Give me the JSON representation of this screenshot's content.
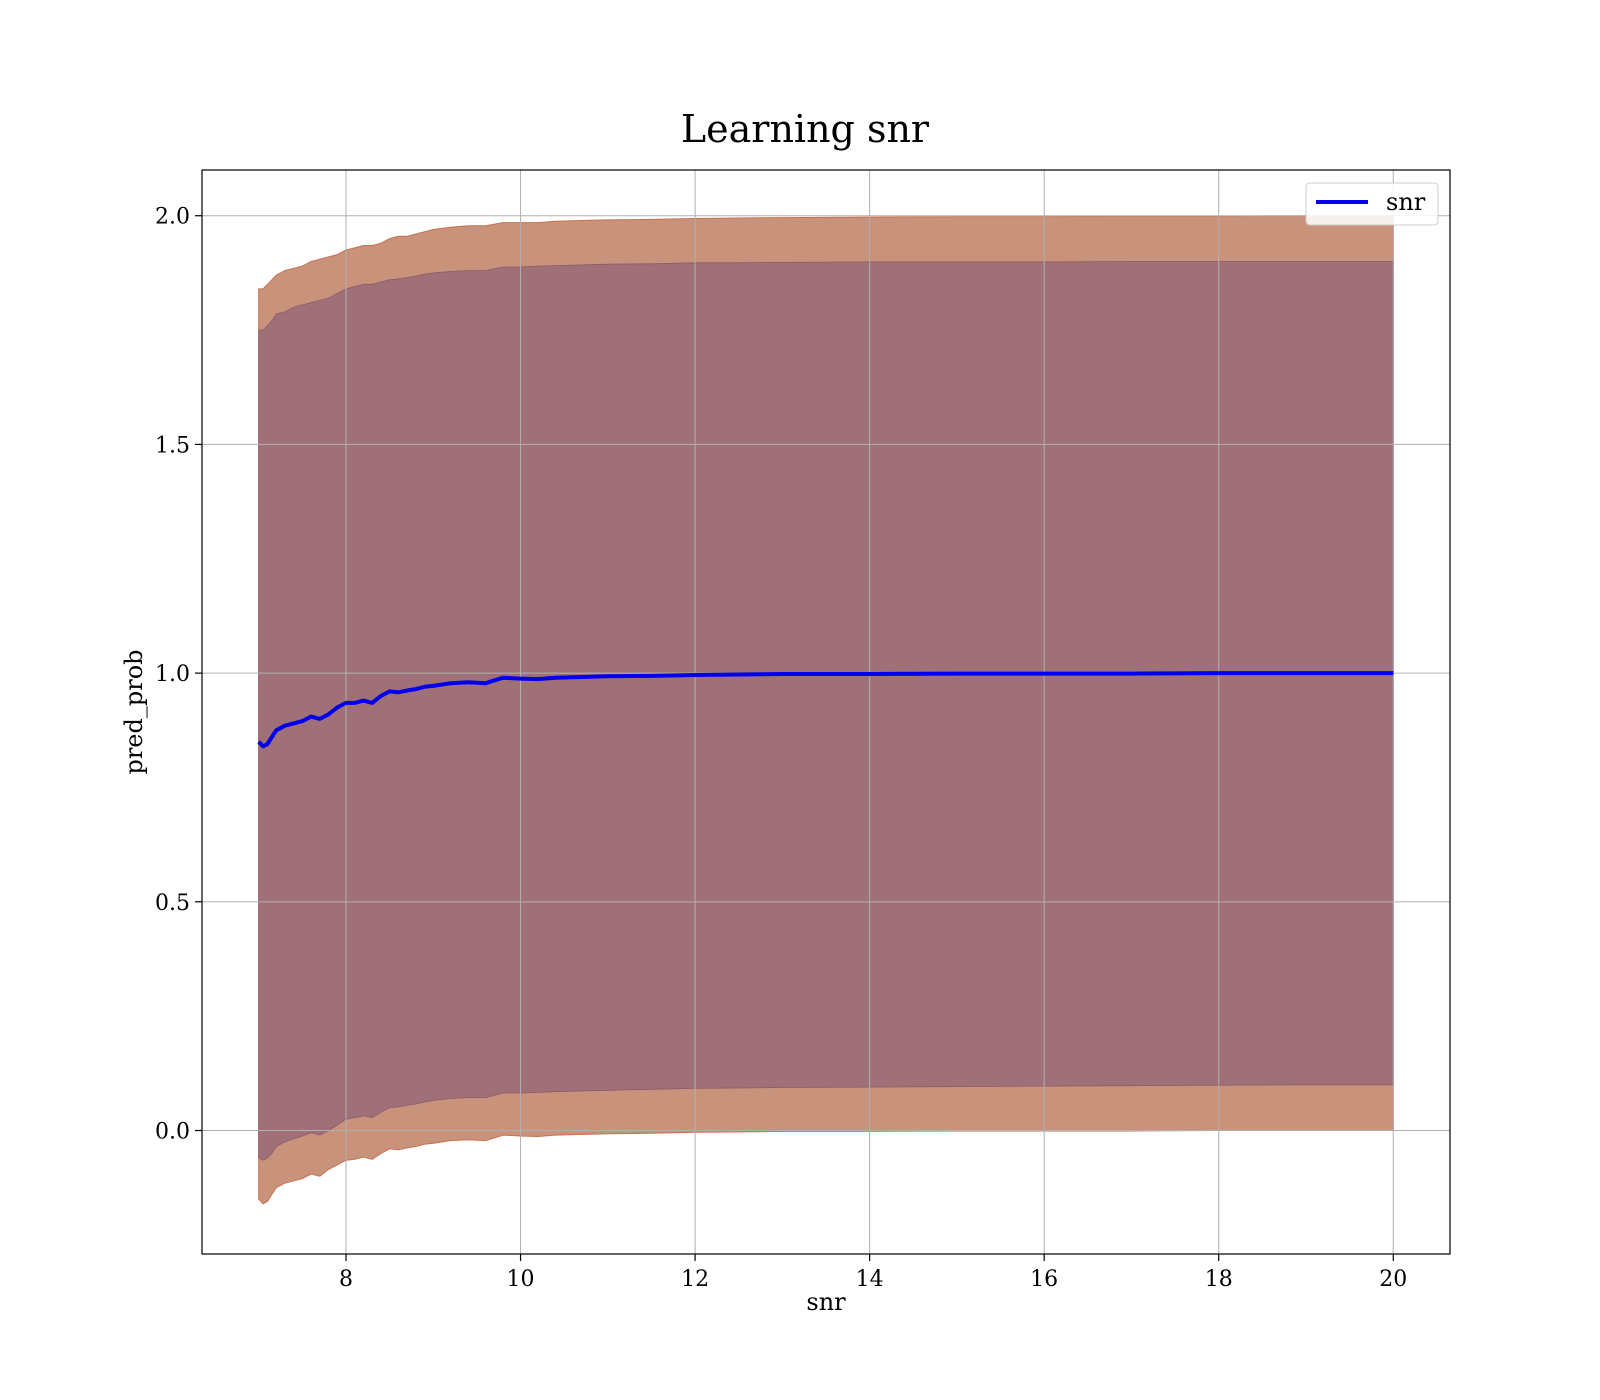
{
  "chart_data": {
    "type": "line",
    "title": "Learning snr",
    "xlabel": "snr",
    "ylabel": "pred_prob",
    "xlim": [
      6.35,
      20.65
    ],
    "ylim": [
      -0.27,
      2.1
    ],
    "xticks": [
      8,
      10,
      12,
      14,
      16,
      18,
      20
    ],
    "xtick_labels": [
      "8",
      "10",
      "12",
      "14",
      "16",
      "18",
      "20"
    ],
    "yticks": [
      0.0,
      0.5,
      1.0,
      1.5,
      2.0
    ],
    "ytick_labels": [
      "0.0",
      "0.5",
      "1.0",
      "1.5",
      "2.0"
    ],
    "grid": true,
    "legend": {
      "placement": "top-right",
      "entries": [
        "snr"
      ]
    },
    "colors": {
      "line": "#0000ee",
      "outer_band": "#c8937a",
      "inner_band": "#a07078",
      "grid": "#b0b0b0"
    },
    "series": [
      {
        "name": "snr",
        "x": [
          7.0,
          7.05,
          7.1,
          7.15,
          7.2,
          7.3,
          7.4,
          7.5,
          7.6,
          7.7,
          7.8,
          7.9,
          8.0,
          8.1,
          8.2,
          8.3,
          8.4,
          8.5,
          8.6,
          8.7,
          8.8,
          8.9,
          9.0,
          9.2,
          9.4,
          9.6,
          9.8,
          10.0,
          10.2,
          10.4,
          10.6,
          10.8,
          11.0,
          11.5,
          12.0,
          12.5,
          13.0,
          14.0,
          15.0,
          16.0,
          17.0,
          18.0,
          19.0,
          20.0
        ],
        "y": [
          0.85,
          0.84,
          0.845,
          0.86,
          0.875,
          0.885,
          0.89,
          0.895,
          0.905,
          0.9,
          0.91,
          0.925,
          0.935,
          0.935,
          0.94,
          0.935,
          0.95,
          0.96,
          0.958,
          0.962,
          0.965,
          0.97,
          0.972,
          0.978,
          0.98,
          0.978,
          0.99,
          0.988,
          0.987,
          0.99,
          0.991,
          0.992,
          0.993,
          0.994,
          0.996,
          0.997,
          0.998,
          0.998,
          0.999,
          0.999,
          0.999,
          1.0,
          1.0,
          1.0
        ],
        "outer_band": {
          "upper": [
            1.84,
            1.84,
            1.85,
            1.86,
            1.87,
            1.88,
            1.885,
            1.89,
            1.9,
            1.905,
            1.91,
            1.915,
            1.925,
            1.93,
            1.935,
            1.935,
            1.94,
            1.95,
            1.955,
            1.955,
            1.96,
            1.965,
            1.97,
            1.975,
            1.978,
            1.978,
            1.985,
            1.985,
            1.985,
            1.988,
            1.989,
            1.99,
            1.991,
            1.992,
            1.994,
            1.995,
            1.996,
            1.997,
            1.998,
            1.998,
            1.999,
            1.999,
            2.0,
            2.0
          ],
          "lower": [
            -0.15,
            -0.16,
            -0.155,
            -0.14,
            -0.125,
            -0.115,
            -0.11,
            -0.105,
            -0.095,
            -0.1,
            -0.085,
            -0.075,
            -0.065,
            -0.063,
            -0.058,
            -0.063,
            -0.05,
            -0.04,
            -0.042,
            -0.038,
            -0.035,
            -0.03,
            -0.028,
            -0.022,
            -0.02,
            -0.022,
            -0.01,
            -0.012,
            -0.013,
            -0.01,
            -0.009,
            -0.008,
            -0.007,
            -0.006,
            -0.004,
            -0.003,
            -0.002,
            -0.002,
            -0.001,
            -0.001,
            -0.001,
            0.0,
            0.0,
            0.0
          ]
        },
        "inner_band": {
          "upper": [
            1.75,
            1.75,
            1.76,
            1.77,
            1.785,
            1.79,
            1.8,
            1.805,
            1.81,
            1.815,
            1.82,
            1.83,
            1.84,
            1.845,
            1.85,
            1.85,
            1.855,
            1.86,
            1.862,
            1.865,
            1.868,
            1.872,
            1.875,
            1.878,
            1.88,
            1.88,
            1.888,
            1.888,
            1.89,
            1.891,
            1.892,
            1.893,
            1.894,
            1.895,
            1.897,
            1.897,
            1.898,
            1.899,
            1.899,
            1.899,
            1.9,
            1.9,
            1.9,
            1.9
          ],
          "lower": [
            -0.06,
            -0.065,
            -0.06,
            -0.05,
            -0.035,
            -0.025,
            -0.018,
            -0.012,
            -0.005,
            -0.01,
            0.0,
            0.012,
            0.025,
            0.028,
            0.032,
            0.028,
            0.04,
            0.05,
            0.052,
            0.055,
            0.058,
            0.062,
            0.066,
            0.07,
            0.072,
            0.072,
            0.082,
            0.082,
            0.083,
            0.085,
            0.086,
            0.087,
            0.088,
            0.09,
            0.092,
            0.093,
            0.094,
            0.095,
            0.096,
            0.097,
            0.098,
            0.099,
            0.1,
            0.1
          ]
        }
      }
    ]
  }
}
